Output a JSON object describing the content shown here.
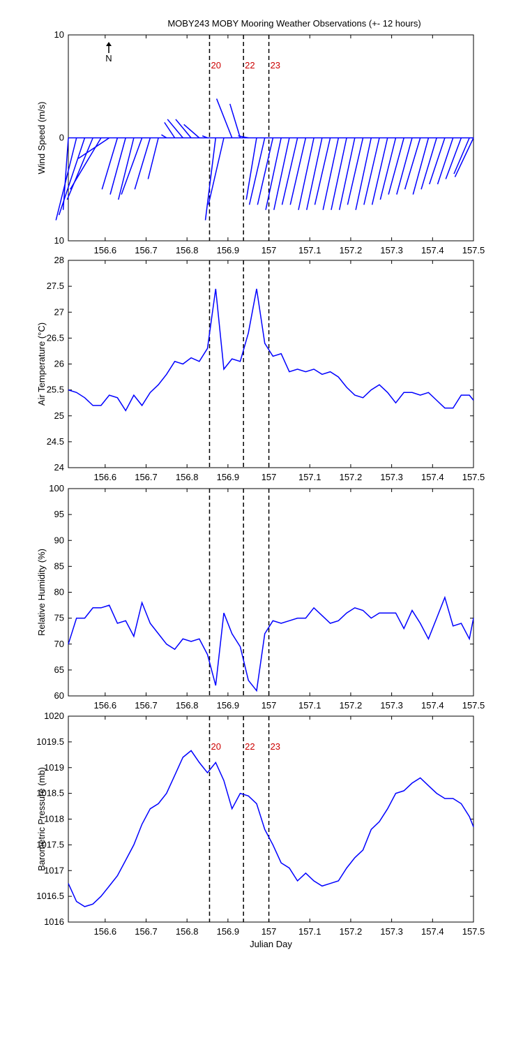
{
  "chart_data": [
    {
      "type": "vector",
      "title": "MOBY243 MOBY Mooring Weather Observations (+- 12 hours)",
      "ylabel": "Wind Speed (m/s)",
      "north_label": "N",
      "color": "#0000ff",
      "x": [
        156.51,
        156.53,
        156.55,
        156.57,
        156.59,
        156.61,
        156.63,
        156.65,
        156.67,
        156.69,
        156.71,
        156.73,
        156.75,
        156.77,
        156.79,
        156.81,
        156.83,
        156.85,
        156.87,
        156.89,
        156.91,
        156.93,
        156.95,
        156.97,
        156.99,
        157.01,
        157.03,
        157.05,
        157.07,
        157.09,
        157.11,
        157.13,
        157.15,
        157.17,
        157.19,
        157.21,
        157.23,
        157.25,
        157.27,
        157.29,
        157.31,
        157.33,
        157.35,
        157.37,
        157.39,
        157.41,
        157.43,
        157.45,
        157.47,
        157.49,
        157.5
      ],
      "u": [
        -0.5,
        -2,
        -2.5,
        -2.5,
        -3,
        -3,
        -1.5,
        -1.5,
        -1.5,
        -2,
        -1.5,
        -1,
        -0.5,
        -1,
        -1.5,
        -1.5,
        -1.5,
        -0.5,
        -1,
        -1.5,
        -1.5,
        -1,
        -1,
        -1,
        -1.5,
        -1.5,
        -1.5,
        -1.5,
        -1.5,
        -1.5,
        -1.5,
        -1.5,
        -1.5,
        -1.5,
        -1.5,
        -1.5,
        -1.5,
        -1.5,
        -1.5,
        -1.5,
        -1.5,
        -1.5,
        -1.5,
        -1.5,
        -1.5,
        -1.5,
        -1.5,
        -1.5,
        -1.5,
        -1.5,
        -1.8
      ],
      "v": [
        -7,
        -8,
        -7.5,
        -6,
        -5,
        -2,
        -5,
        -5.5,
        -6,
        -5.5,
        -5,
        -4,
        0.3,
        1.5,
        1.8,
        1.8,
        1.3,
        0.2,
        -8,
        -6.5,
        3.8,
        3.3,
        0.2,
        -6,
        -6.5,
        -6.5,
        -7,
        -7,
        -6.5,
        -6.5,
        -7,
        -7,
        -6.5,
        -7,
        -7,
        -7,
        -6.5,
        -7,
        -6.5,
        -6.5,
        -6,
        -5.5,
        -5.5,
        -5,
        -5.5,
        -5,
        -4.5,
        -4.5,
        -4,
        -3.5,
        -3.8
      ],
      "xlim": [
        156.51,
        157.5
      ],
      "xticks": [
        156.6,
        156.7,
        156.8,
        156.9,
        157,
        157.1,
        157.2,
        157.3,
        157.4,
        157.5
      ],
      "ylim": [
        -10,
        10
      ],
      "yticks": [
        {
          "value": -10,
          "label": "10"
        },
        0,
        10
      ],
      "vlines": [
        156.855,
        156.938,
        157.0
      ],
      "vline_labels": [
        "20",
        "22",
        "23"
      ]
    },
    {
      "type": "line",
      "ylabel": "Air Temperature (°C)",
      "color": "#0000ff",
      "x": [
        156.51,
        156.53,
        156.55,
        156.57,
        156.59,
        156.61,
        156.63,
        156.65,
        156.67,
        156.69,
        156.71,
        156.73,
        156.75,
        156.77,
        156.79,
        156.81,
        156.83,
        156.85,
        156.87,
        156.89,
        156.91,
        156.93,
        156.95,
        156.97,
        156.99,
        157.01,
        157.03,
        157.05,
        157.07,
        157.09,
        157.11,
        157.13,
        157.15,
        157.17,
        157.19,
        157.21,
        157.23,
        157.25,
        157.27,
        157.29,
        157.31,
        157.33,
        157.35,
        157.37,
        157.39,
        157.41,
        157.43,
        157.45,
        157.47,
        157.49,
        157.5
      ],
      "values": [
        25.5,
        25.45,
        25.35,
        25.2,
        25.2,
        25.4,
        25.35,
        25.1,
        25.4,
        25.2,
        25.45,
        25.6,
        25.8,
        26.05,
        26.0,
        26.12,
        26.05,
        26.3,
        27.45,
        25.9,
        26.1,
        26.05,
        26.6,
        27.45,
        26.4,
        26.15,
        26.2,
        25.85,
        25.9,
        25.85,
        25.9,
        25.8,
        25.85,
        25.75,
        25.55,
        25.4,
        25.35,
        25.5,
        25.6,
        25.45,
        25.25,
        25.45,
        25.45,
        25.4,
        25.45,
        25.3,
        25.15,
        25.15,
        25.4,
        25.4,
        25.3
      ],
      "xlim": [
        156.51,
        157.5
      ],
      "xticks": [
        156.6,
        156.7,
        156.8,
        156.9,
        157,
        157.1,
        157.2,
        157.3,
        157.4,
        157.5
      ],
      "ylim": [
        24,
        28
      ],
      "yticks": [
        24,
        24.5,
        25,
        25.5,
        26,
        26.5,
        27,
        27.5,
        28
      ],
      "vlines": [
        156.855,
        156.938,
        157.0
      ]
    },
    {
      "type": "line",
      "ylabel": "Relative Humidity (%)",
      "color": "#0000ff",
      "x": [
        156.51,
        156.53,
        156.55,
        156.57,
        156.59,
        156.61,
        156.63,
        156.65,
        156.67,
        156.69,
        156.71,
        156.73,
        156.75,
        156.77,
        156.79,
        156.81,
        156.83,
        156.85,
        156.87,
        156.89,
        156.91,
        156.93,
        156.95,
        156.97,
        156.99,
        157.01,
        157.03,
        157.05,
        157.07,
        157.09,
        157.11,
        157.13,
        157.15,
        157.17,
        157.19,
        157.21,
        157.23,
        157.25,
        157.27,
        157.29,
        157.31,
        157.33,
        157.35,
        157.37,
        157.39,
        157.41,
        157.43,
        157.45,
        157.47,
        157.49,
        157.5
      ],
      "values": [
        70,
        75,
        75,
        77,
        77,
        77.5,
        74,
        74.5,
        71.5,
        78,
        74,
        72,
        70,
        69,
        71,
        70.5,
        71,
        68,
        62,
        76,
        72,
        69.5,
        63,
        61,
        72,
        74.5,
        74,
        74.5,
        75,
        75,
        77,
        75.5,
        74,
        74.5,
        76,
        77,
        76.5,
        75,
        76,
        76,
        76,
        73,
        76.5,
        74,
        71,
        75,
        79,
        73.5,
        74,
        71,
        75
      ],
      "xlim": [
        156.51,
        157.5
      ],
      "xticks": [
        156.6,
        156.7,
        156.8,
        156.9,
        157,
        157.1,
        157.2,
        157.3,
        157.4,
        157.5
      ],
      "ylim": [
        60,
        100
      ],
      "yticks": [
        60,
        65,
        70,
        75,
        80,
        85,
        90,
        95,
        100
      ],
      "vlines": [
        156.855,
        156.938,
        157.0
      ]
    },
    {
      "type": "line",
      "ylabel": "Barometric Pressure (mb)",
      "xlabel": "Julian Day",
      "color": "#0000ff",
      "x": [
        156.51,
        156.53,
        156.55,
        156.57,
        156.59,
        156.61,
        156.63,
        156.65,
        156.67,
        156.69,
        156.71,
        156.73,
        156.75,
        156.77,
        156.79,
        156.81,
        156.83,
        156.85,
        156.87,
        156.89,
        156.91,
        156.93,
        156.95,
        156.97,
        156.99,
        157.01,
        157.03,
        157.05,
        157.07,
        157.09,
        157.11,
        157.13,
        157.15,
        157.17,
        157.19,
        157.21,
        157.23,
        157.25,
        157.27,
        157.29,
        157.31,
        157.33,
        157.35,
        157.37,
        157.39,
        157.41,
        157.43,
        157.45,
        157.47,
        157.49,
        157.5
      ],
      "values": [
        1016.75,
        1016.4,
        1016.3,
        1016.35,
        1016.5,
        1016.7,
        1016.9,
        1017.2,
        1017.5,
        1017.9,
        1018.2,
        1018.3,
        1018.5,
        1018.85,
        1019.2,
        1019.33,
        1019.1,
        1018.9,
        1019.1,
        1018.75,
        1018.2,
        1018.5,
        1018.45,
        1018.3,
        1017.8,
        1017.5,
        1017.15,
        1017.05,
        1016.8,
        1016.95,
        1016.8,
        1016.7,
        1016.75,
        1016.8,
        1017.05,
        1017.25,
        1017.4,
        1017.8,
        1017.95,
        1018.2,
        1018.5,
        1018.55,
        1018.7,
        1018.8,
        1018.65,
        1018.5,
        1018.4,
        1018.4,
        1018.3,
        1018.05,
        1017.85
      ],
      "xlim": [
        156.51,
        157.5
      ],
      "xticks": [
        156.6,
        156.7,
        156.8,
        156.9,
        157,
        157.1,
        157.2,
        157.3,
        157.4,
        157.5
      ],
      "ylim": [
        1016,
        1020
      ],
      "yticks": [
        1016,
        1016.5,
        1017,
        1017.5,
        1018,
        1018.5,
        1019,
        1019.5,
        1020
      ],
      "vlines": [
        156.855,
        156.938,
        157.0
      ],
      "vline_labels": [
        "20",
        "22",
        "23"
      ]
    }
  ]
}
